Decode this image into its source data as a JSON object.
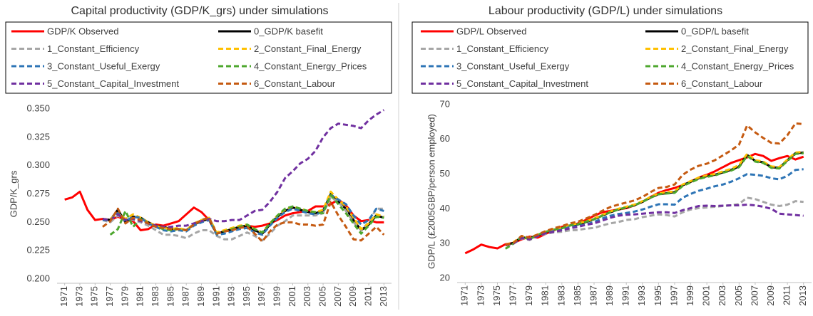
{
  "chart_data": [
    {
      "type": "line",
      "title": "Capital productivity (GDP/K_grs) under simulations",
      "ylabel": "GDP/K_grs",
      "x": [
        1971,
        1972,
        1973,
        1974,
        1975,
        1976,
        1977,
        1978,
        1979,
        1980,
        1981,
        1982,
        1983,
        1984,
        1985,
        1986,
        1987,
        1988,
        1989,
        1990,
        1991,
        1992,
        1993,
        1994,
        1995,
        1996,
        1997,
        1998,
        1999,
        2000,
        2001,
        2002,
        2003,
        2004,
        2005,
        2006,
        2007,
        2008,
        2009,
        2010,
        2011,
        2012,
        2013
      ],
      "xlim": [
        1970,
        2014
      ],
      "xticks": [
        1971,
        1973,
        1975,
        1977,
        1979,
        1981,
        1983,
        1985,
        1987,
        1989,
        1991,
        1993,
        1995,
        1997,
        1999,
        2001,
        2003,
        2005,
        2007,
        2009,
        2011,
        2013
      ],
      "ylim": [
        0.2,
        0.35
      ],
      "yticks": [
        {
          "value": 0.2,
          "label": "0.200"
        },
        0.225,
        {
          "value": 0.25,
          "label": "0.250"
        },
        0.275,
        {
          "value": 0.3,
          "label": "0.300"
        },
        0.325,
        {
          "value": 0.35,
          "label": "0.350"
        }
      ],
      "grid": false,
      "legend": "top",
      "series": [
        {
          "name": "GDP/K Observed",
          "color": "#ff0000",
          "linestyle": "solid",
          "values": [
            0.27,
            0.272,
            0.277,
            0.261,
            0.252,
            0.253,
            0.252,
            0.255,
            0.252,
            0.251,
            0.243,
            0.244,
            0.248,
            0.247,
            0.249,
            0.251,
            0.257,
            0.263,
            0.259,
            0.252,
            0.24,
            0.242,
            0.243,
            0.245,
            0.247,
            0.246,
            0.247,
            0.249,
            0.252,
            0.256,
            0.258,
            0.259,
            0.26,
            0.264,
            0.264,
            0.266,
            0.27,
            0.265,
            0.256,
            0.251,
            0.252,
            0.25,
            0.25
          ]
        },
        {
          "name": "0_GDP/K basefit",
          "color": "#000000",
          "linestyle": "solid",
          "values": [
            null,
            null,
            null,
            null,
            null,
            0.253,
            0.252,
            0.261,
            0.25,
            0.255,
            0.254,
            0.25,
            0.247,
            0.246,
            0.244,
            0.244,
            0.243,
            0.248,
            0.251,
            0.253,
            0.24,
            0.242,
            0.244,
            0.246,
            0.247,
            0.243,
            0.24,
            0.248,
            0.255,
            0.26,
            0.263,
            0.261,
            0.259,
            0.258,
            0.26,
            0.275,
            0.268,
            0.262,
            0.252,
            0.243,
            0.248,
            0.256,
            0.254
          ]
        },
        {
          "name": "1_Constant_Efficiency",
          "color": "#a6a6a6",
          "linestyle": "dashed",
          "values": [
            null,
            null,
            null,
            null,
            null,
            0.252,
            0.25,
            0.256,
            0.252,
            0.252,
            0.25,
            0.247,
            0.243,
            0.239,
            0.239,
            0.238,
            0.236,
            0.24,
            0.243,
            0.243,
            0.238,
            0.235,
            0.235,
            0.238,
            0.241,
            0.238,
            0.234,
            0.24,
            0.247,
            0.251,
            0.256,
            0.256,
            0.256,
            0.256,
            0.258,
            0.272,
            0.268,
            0.26,
            0.25,
            0.243,
            0.25,
            0.262,
            0.262
          ]
        },
        {
          "name": "2_Constant_Final_Energy",
          "color": "#ffc000",
          "linestyle": "dashed",
          "values": [
            null,
            null,
            null,
            null,
            null,
            0.252,
            0.253,
            0.258,
            0.253,
            0.257,
            0.254,
            0.25,
            0.247,
            0.245,
            0.244,
            0.245,
            0.243,
            0.249,
            0.252,
            0.254,
            0.241,
            0.243,
            0.245,
            0.247,
            0.248,
            0.244,
            0.241,
            0.249,
            0.256,
            0.261,
            0.264,
            0.262,
            0.26,
            0.259,
            0.261,
            0.277,
            0.27,
            0.264,
            0.254,
            0.244,
            0.249,
            0.257,
            0.255
          ]
        },
        {
          "name": "3_Constant_Useful_Exergy",
          "color": "#2e75b6",
          "linestyle": "dashed",
          "values": [
            null,
            null,
            null,
            null,
            null,
            0.252,
            0.252,
            0.258,
            0.251,
            0.255,
            0.254,
            0.249,
            0.246,
            0.243,
            0.242,
            0.243,
            0.242,
            0.247,
            0.25,
            0.252,
            0.239,
            0.24,
            0.242,
            0.244,
            0.245,
            0.241,
            0.239,
            0.247,
            0.254,
            0.259,
            0.262,
            0.26,
            0.258,
            0.257,
            0.259,
            0.274,
            0.27,
            0.266,
            0.256,
            0.248,
            0.252,
            0.262,
            0.26
          ]
        },
        {
          "name": "4_Constant_Energy_Prices",
          "color": "#4ea72e",
          "linestyle": "dashed",
          "values": [
            null,
            null,
            null,
            null,
            null,
            null,
            0.239,
            0.244,
            0.26,
            0.246,
            0.253,
            0.249,
            0.246,
            0.244,
            0.243,
            0.244,
            0.243,
            0.248,
            0.252,
            0.254,
            0.24,
            0.242,
            0.244,
            0.246,
            0.248,
            0.244,
            0.241,
            0.249,
            0.256,
            0.262,
            0.264,
            0.262,
            0.26,
            0.259,
            0.258,
            0.274,
            0.266,
            0.258,
            0.249,
            0.24,
            0.247,
            0.255,
            0.254
          ]
        },
        {
          "name": "5_Constant_Capital_Investment",
          "color": "#7030a0",
          "linestyle": "dashed",
          "values": [
            null,
            null,
            null,
            null,
            null,
            0.253,
            0.252,
            0.257,
            0.252,
            0.253,
            0.251,
            0.249,
            0.247,
            0.246,
            0.246,
            0.247,
            0.247,
            0.249,
            0.251,
            0.253,
            0.251,
            0.251,
            0.252,
            0.252,
            0.256,
            0.26,
            0.261,
            0.268,
            0.277,
            0.289,
            0.295,
            0.302,
            0.306,
            0.313,
            0.325,
            0.333,
            0.337,
            0.336,
            0.335,
            0.333,
            0.34,
            0.345,
            0.349
          ]
        },
        {
          "name": "6_Constant_Labour",
          "color": "#c55a11",
          "linestyle": "dashed",
          "values": [
            null,
            null,
            null,
            null,
            null,
            0.246,
            0.251,
            0.262,
            0.249,
            0.254,
            0.252,
            0.249,
            0.246,
            0.245,
            0.244,
            0.244,
            0.243,
            0.248,
            0.252,
            0.254,
            0.24,
            0.242,
            0.243,
            0.245,
            0.246,
            0.24,
            0.233,
            0.242,
            0.248,
            0.25,
            0.25,
            0.248,
            0.248,
            0.247,
            0.248,
            0.268,
            0.256,
            0.246,
            0.235,
            0.234,
            0.24,
            0.246,
            0.239
          ]
        }
      ]
    },
    {
      "type": "line",
      "title": "Labour productivity (GDP/L) under simulations",
      "ylabel": "GDP/L (£2005GBP/person employed)",
      "x": [
        1971,
        1972,
        1973,
        1974,
        1975,
        1976,
        1977,
        1978,
        1979,
        1980,
        1981,
        1982,
        1983,
        1984,
        1985,
        1986,
        1987,
        1988,
        1989,
        1990,
        1991,
        1992,
        1993,
        1994,
        1995,
        1996,
        1997,
        1998,
        1999,
        2000,
        2001,
        2002,
        2003,
        2004,
        2005,
        2006,
        2007,
        2008,
        2009,
        2010,
        2011,
        2012,
        2013
      ],
      "xlim": [
        1970,
        2014
      ],
      "xticks": [
        1971,
        1973,
        1975,
        1977,
        1979,
        1981,
        1983,
        1985,
        1987,
        1989,
        1991,
        1993,
        1995,
        1997,
        1999,
        2001,
        2003,
        2005,
        2007,
        2009,
        2011,
        2013
      ],
      "ylim": [
        20,
        70
      ],
      "yticks": [
        20,
        30,
        40,
        50,
        60,
        70
      ],
      "grid": false,
      "legend": "top",
      "series": [
        {
          "name": "GDP/L Observed",
          "color": "#ff0000",
          "linestyle": "solid",
          "values": [
            27.2,
            28.3,
            29.7,
            29.0,
            28.6,
            29.8,
            30.2,
            31.2,
            32.0,
            31.7,
            32.8,
            33.8,
            34.8,
            35.2,
            35.8,
            36.8,
            38.0,
            39.0,
            39.4,
            39.8,
            40.2,
            41.0,
            42.0,
            43.4,
            44.6,
            45.4,
            46.0,
            46.8,
            47.8,
            49.0,
            49.8,
            50.8,
            52.0,
            53.2,
            54.0,
            54.8,
            55.8,
            55.2,
            53.8,
            54.6,
            55.2,
            54.2,
            55.0
          ]
        },
        {
          "name": "0_GDP/L basefit",
          "color": "#000000",
          "linestyle": "solid",
          "values": [
            null,
            null,
            null,
            null,
            null,
            29.5,
            30.2,
            31.8,
            31.5,
            32.4,
            33.3,
            34.0,
            34.4,
            35.2,
            35.5,
            36.2,
            37.0,
            38.0,
            39.0,
            39.8,
            40.4,
            41.0,
            42.0,
            43.2,
            44.2,
            44.5,
            44.8,
            46.8,
            47.8,
            48.8,
            49.4,
            49.8,
            50.5,
            51.2,
            52.2,
            55.5,
            53.8,
            53.4,
            52.0,
            51.8,
            54.0,
            56.0,
            56.2
          ]
        },
        {
          "name": "1_Constant_Efficiency",
          "color": "#a6a6a6",
          "linestyle": "dashed",
          "values": [
            null,
            null,
            null,
            null,
            null,
            29.5,
            30.0,
            31.5,
            31.0,
            32.2,
            32.8,
            33.2,
            33.4,
            33.8,
            33.9,
            34.3,
            34.5,
            35.2,
            35.8,
            36.2,
            36.8,
            37.0,
            37.6,
            38.0,
            38.4,
            38.2,
            37.8,
            39.0,
            39.8,
            40.2,
            40.4,
            40.6,
            40.8,
            41.0,
            41.4,
            43.2,
            42.8,
            42.0,
            41.2,
            40.8,
            41.2,
            42.2,
            42.0
          ]
        },
        {
          "name": "2_Constant_Final_Energy",
          "color": "#ffc000",
          "linestyle": "dashed",
          "values": [
            null,
            null,
            null,
            null,
            null,
            29.6,
            30.4,
            32.0,
            31.6,
            32.6,
            33.5,
            34.2,
            34.6,
            35.4,
            35.8,
            36.4,
            37.2,
            38.2,
            39.2,
            40.0,
            40.6,
            41.2,
            42.2,
            43.4,
            44.4,
            44.8,
            45.0,
            47.0,
            48.0,
            49.0,
            49.6,
            50.0,
            50.8,
            51.5,
            52.6,
            55.8,
            54.0,
            53.6,
            52.2,
            52.0,
            54.2,
            56.2,
            56.4
          ]
        },
        {
          "name": "3_Constant_Useful_Exergy",
          "color": "#2e75b6",
          "linestyle": "dashed",
          "values": [
            null,
            null,
            null,
            null,
            null,
            29.5,
            30.0,
            31.6,
            31.3,
            32.2,
            33.0,
            33.6,
            34.0,
            34.8,
            35.0,
            35.5,
            36.2,
            37.2,
            38.0,
            38.5,
            38.8,
            39.2,
            39.8,
            40.6,
            41.3,
            41.3,
            41.2,
            43.2,
            44.3,
            45.2,
            45.8,
            46.5,
            47.0,
            47.8,
            48.8,
            50.0,
            49.8,
            49.5,
            48.8,
            48.5,
            49.5,
            51.2,
            51.4
          ]
        },
        {
          "name": "4_Constant_Energy_Prices",
          "color": "#4ea72e",
          "linestyle": "dashed",
          "values": [
            null,
            null,
            null,
            null,
            null,
            28.5,
            30.0,
            32.0,
            31.2,
            32.5,
            33.4,
            34.0,
            34.4,
            35.2,
            35.6,
            36.3,
            37.0,
            38.0,
            39.0,
            39.8,
            40.4,
            41.0,
            42.0,
            43.2,
            44.2,
            44.4,
            44.6,
            46.6,
            47.6,
            48.6,
            49.2,
            49.6,
            50.4,
            51.0,
            52.0,
            55.2,
            53.6,
            53.2,
            51.8,
            51.6,
            53.8,
            55.8,
            56.0
          ]
        },
        {
          "name": "5_Constant_Capital_Investment",
          "color": "#7030a0",
          "linestyle": "dashed",
          "values": [
            null,
            null,
            null,
            null,
            null,
            29.5,
            30.0,
            31.6,
            31.2,
            32.2,
            33.0,
            33.4,
            33.8,
            34.4,
            34.8,
            35.4,
            35.8,
            36.6,
            37.4,
            38.0,
            38.3,
            38.4,
            38.6,
            38.8,
            39.0,
            39.0,
            38.8,
            39.6,
            40.2,
            40.8,
            40.9,
            40.8,
            40.9,
            41.0,
            41.0,
            41.2,
            41.0,
            40.6,
            40.0,
            38.6,
            38.4,
            38.2,
            38.0
          ]
        },
        {
          "name": "6_Constant_Labour",
          "color": "#c55a11",
          "linestyle": "dashed",
          "values": [
            null,
            null,
            null,
            null,
            null,
            29.6,
            30.2,
            32.2,
            31.7,
            32.6,
            33.6,
            34.4,
            35.0,
            35.8,
            36.3,
            37.2,
            38.2,
            39.4,
            40.5,
            41.2,
            41.8,
            42.4,
            43.4,
            44.8,
            46.0,
            46.3,
            47.0,
            49.8,
            51.3,
            52.4,
            53.0,
            54.0,
            55.4,
            56.8,
            58.5,
            64.0,
            62.0,
            60.4,
            59.0,
            58.8,
            61.2,
            64.6,
            64.4
          ]
        }
      ]
    }
  ]
}
